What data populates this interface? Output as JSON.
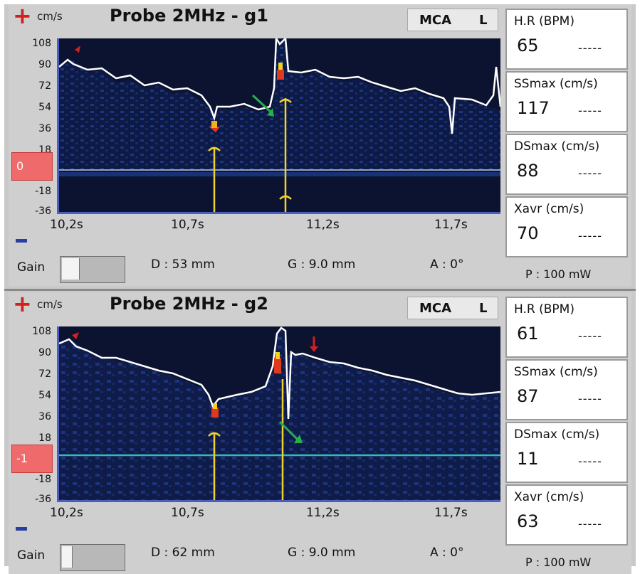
{
  "colors": {
    "positive": "#d21f1f",
    "negative": "#2a3e9e",
    "spectrum_bg": "#0b1331",
    "envelope": "#ffffff",
    "marker": "#f0d22b",
    "baseline_box": "#ef6b6b",
    "green_arrow": "#25b04a"
  },
  "panels": [
    {
      "plus_icon": "+",
      "unit": "cm/s",
      "title": "Probe 2MHz - g1",
      "artery": "MCA",
      "side": "L",
      "y_ticks": [
        "108",
        "90",
        "72",
        "54",
        "36",
        "18",
        "-18",
        "-36"
      ],
      "baseline": "0",
      "x_ticks": [
        "10,2s",
        "10,7s",
        "11,2s",
        "11,7s"
      ],
      "gain_label": "Gain",
      "depth": "D :  53 mm",
      "gate": "G : 9.0 mm",
      "angle": "A : 0°",
      "power": "P :  100 mW",
      "measurements": [
        {
          "label": "H.R (BPM)",
          "value": "65",
          "dash": "-----"
        },
        {
          "label": "SSmax (cm/s)",
          "value": "117",
          "dash": "-----"
        },
        {
          "label": "DSmax (cm/s)",
          "value": "88",
          "dash": "-----"
        },
        {
          "label": "Xavr (cm/s)",
          "value": "70",
          "dash": "-----"
        }
      ]
    },
    {
      "plus_icon": "+",
      "unit": "cm/s",
      "title": "Probe 2MHz - g2",
      "artery": "MCA",
      "side": "L",
      "y_ticks": [
        "108",
        "90",
        "72",
        "54",
        "36",
        "18",
        "-18",
        "-36"
      ],
      "baseline": "-1",
      "x_ticks": [
        "10,2s",
        "10,7s",
        "11,2s",
        "11,7s"
      ],
      "gain_label": "Gain",
      "depth": "D :  62 mm",
      "gate": "G : 9.0 mm",
      "angle": "A : 0°",
      "power": "P :  100 mW",
      "measurements": [
        {
          "label": "H.R (BPM)",
          "value": "61",
          "dash": "-----"
        },
        {
          "label": "SSmax (cm/s)",
          "value": "87",
          "dash": "-----"
        },
        {
          "label": "DSmax (cm/s)",
          "value": "11",
          "dash": "-----"
        },
        {
          "label": "Xavr (cm/s)",
          "value": "63",
          "dash": "-----"
        }
      ]
    }
  ]
}
